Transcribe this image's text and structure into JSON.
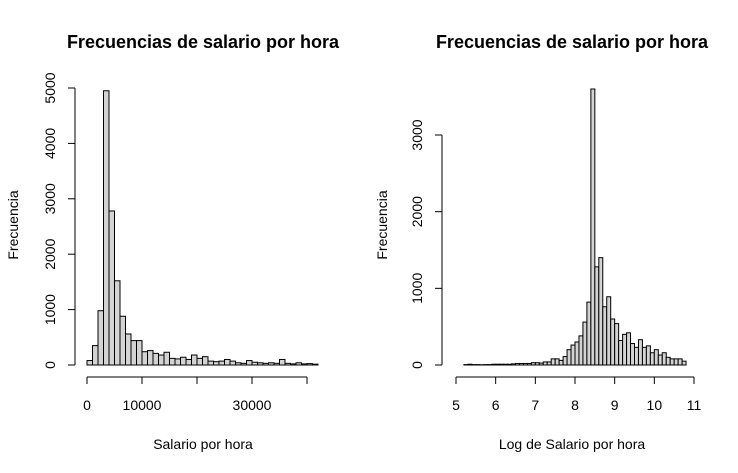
{
  "chart_data": [
    {
      "type": "bar",
      "title": "Frecuencias de salario por hora",
      "xlabel": "Salario por hora",
      "ylabel": "Frecuencia",
      "bar_color": "#d3d3d3",
      "xlim": [
        0,
        42000
      ],
      "ylim": [
        0,
        5000
      ],
      "x_ticks": [
        0,
        10000,
        20000,
        30000,
        40000
      ],
      "x_tick_labels": [
        "0",
        "10000",
        "",
        "30000",
        ""
      ],
      "y_ticks": [
        0,
        1000,
        2000,
        3000,
        4000,
        5000
      ],
      "y_tick_labels": [
        "0",
        "1000",
        "2000",
        "3000",
        "4000",
        "5000"
      ],
      "bin_start": 0,
      "bin_width": 1000,
      "values": [
        80,
        350,
        980,
        4950,
        2780,
        1520,
        880,
        560,
        440,
        440,
        240,
        260,
        210,
        180,
        230,
        120,
        110,
        140,
        100,
        180,
        120,
        150,
        70,
        60,
        70,
        100,
        70,
        40,
        30,
        80,
        50,
        40,
        30,
        40,
        30,
        100,
        30,
        20,
        40,
        20,
        25,
        15
      ]
    },
    {
      "type": "bar",
      "title": "Frecuencias de salario por hora",
      "xlabel": "Log de Salario por hora",
      "ylabel": "Frecuencia",
      "bar_color": "#d3d3d3",
      "xlim": [
        5,
        11
      ],
      "ylim": [
        0,
        3600
      ],
      "x_ticks": [
        5,
        6,
        7,
        8,
        9,
        10,
        11
      ],
      "x_tick_labels": [
        "5",
        "6",
        "7",
        "8",
        "9",
        "10",
        "11"
      ],
      "y_ticks": [
        0,
        1000,
        2000,
        3000
      ],
      "y_tick_labels": [
        "0",
        "1000",
        "2000",
        "3000"
      ],
      "bin_start": 5.0,
      "bin_width": 0.1,
      "values": [
        0,
        0,
        5,
        10,
        5,
        5,
        3,
        5,
        5,
        10,
        10,
        10,
        10,
        10,
        15,
        20,
        20,
        20,
        20,
        30,
        30,
        25,
        40,
        40,
        80,
        80,
        60,
        110,
        200,
        260,
        300,
        380,
        560,
        820,
        3600,
        1280,
        1400,
        760,
        890,
        600,
        540,
        320,
        400,
        420,
        280,
        230,
        330,
        230,
        250,
        160,
        200,
        130,
        160,
        100,
        80,
        80,
        80,
        50
      ]
    }
  ]
}
